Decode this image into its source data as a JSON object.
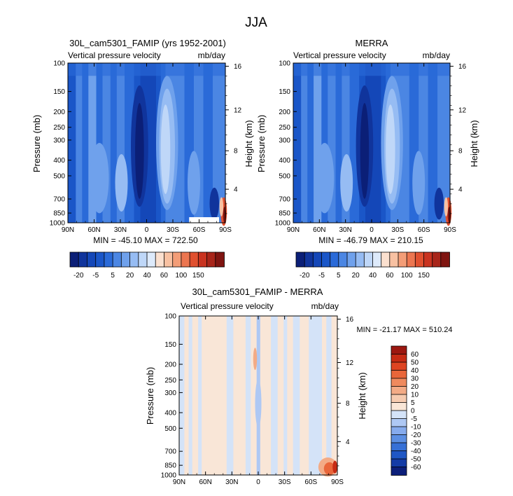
{
  "page_title": "JJA",
  "colors": {
    "bg": "#ffffff",
    "frame": "#000000",
    "abs_palette": [
      "#0b1f77",
      "#10349c",
      "#1447b8",
      "#1a56c8",
      "#2a6ad8",
      "#4b86e3",
      "#6fa1ec",
      "#96bcf3",
      "#bfd7f8",
      "#ddeafb",
      "#fbe0cf",
      "#f8c1a2",
      "#f39d77",
      "#ec7650",
      "#e0502f",
      "#c93320",
      "#a8251a",
      "#7f1511"
    ],
    "diff_palette": [
      "#0c1f7a",
      "#143ca6",
      "#1f57c5",
      "#3670d6",
      "#5c8fe3",
      "#86abed",
      "#aec8f4",
      "#d4e3f8",
      "#f9e6d7",
      "#f6cbb0",
      "#f3ab86",
      "#ef8a5e",
      "#e9663a",
      "#de4422",
      "#c62b14",
      "#9c1710"
    ]
  },
  "chart_data": [
    {
      "type": "heatmap",
      "title": "30L_cam5301_FAMIP (yrs 1952-2001)",
      "subtitle_left": "Vertical pressure velocity",
      "subtitle_right": "mb/day",
      "xlabel": "",
      "ylabel": "Pressure (mb)",
      "ylabel_right": "Height (km)",
      "x_ticks": [
        "90N",
        "60N",
        "30N",
        "0",
        "30S",
        "60S",
        "90S"
      ],
      "y_ticks": [
        "100",
        "150",
        "200",
        "250",
        "300",
        "400",
        "500",
        "700",
        "850",
        "1000"
      ],
      "y_ticks_right": [
        "16",
        "12",
        "8",
        "4"
      ],
      "stats": "MIN = -45.10  MAX = 722.50",
      "colorbar_labels": [
        "-20",
        "-5",
        "5",
        "20",
        "40",
        "60",
        "100",
        "150"
      ]
    },
    {
      "type": "heatmap",
      "title": "MERRA",
      "subtitle_left": "Vertical pressure velocity",
      "subtitle_right": "mb/day",
      "xlabel": "",
      "ylabel": "Pressure (mb)",
      "ylabel_right": "Height (km)",
      "x_ticks": [
        "90N",
        "60N",
        "30N",
        "0",
        "30S",
        "60S",
        "90S"
      ],
      "y_ticks": [
        "100",
        "150",
        "200",
        "250",
        "300",
        "400",
        "500",
        "700",
        "850",
        "1000"
      ],
      "y_ticks_right": [
        "16",
        "12",
        "8",
        "4"
      ],
      "stats": "MIN = -46.79  MAX = 210.15",
      "colorbar_labels": [
        "-20",
        "-5",
        "5",
        "20",
        "40",
        "60",
        "100",
        "150"
      ]
    },
    {
      "type": "heatmap",
      "title": "30L_cam5301_FAMIP - MERRA",
      "subtitle_left": "Vertical pressure velocity",
      "subtitle_right": "mb/day",
      "xlabel": "",
      "ylabel": "Pressure (mb)",
      "ylabel_right": "Height (km)",
      "x_ticks": [
        "90N",
        "60N",
        "30N",
        "0",
        "30S",
        "60S",
        "90S"
      ],
      "y_ticks": [
        "100",
        "150",
        "200",
        "250",
        "300",
        "400",
        "500",
        "700",
        "850",
        "1000"
      ],
      "y_ticks_right": [
        "16",
        "12",
        "8",
        "4"
      ],
      "stats": "MIN = -21.17  MAX = 510.24",
      "colorbar_labels": [
        "60",
        "50",
        "40",
        "30",
        "20",
        "10",
        "5",
        "0",
        "-5",
        "-10",
        "-20",
        "-30",
        "-40",
        "-50",
        "-60"
      ]
    }
  ]
}
